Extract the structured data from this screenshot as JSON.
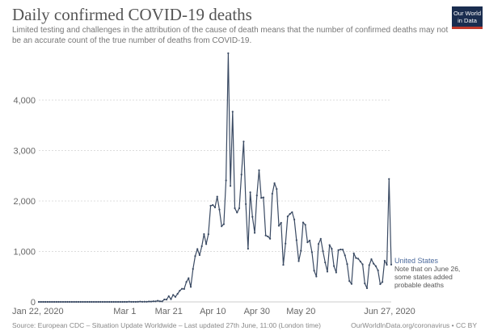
{
  "header": {
    "title": "Daily confirmed COVID-19 deaths",
    "subtitle": "Limited testing and challenges in the attribution of the cause of death means that the number of confirmed deaths may not be an accurate count of the true number of deaths from COVID-19.",
    "logo_line1": "Our World",
    "logo_line2": "in Data"
  },
  "footer": {
    "source": "Source: European CDC – Situation Update Worldwide – Last updated 27th June, 11:00 (London time)",
    "credit": "OurWorldInData.org/coronavirus • CC BY"
  },
  "annotation": {
    "series_name": "United States",
    "note_line1": "Note that on June 26,",
    "note_line2": "some states added",
    "note_line3": "probable deaths"
  },
  "colors": {
    "line": "#3a4a63",
    "grid": "#dddddd",
    "logo_bg": "#1a2d4f",
    "logo_accent": "#c0392b"
  },
  "chart_data": {
    "type": "line",
    "title": "Daily confirmed COVID-19 deaths",
    "xlabel": "",
    "ylabel": "",
    "ylim": [
      0,
      5000
    ],
    "yticks": [
      0,
      1000,
      2000,
      3000,
      4000
    ],
    "ytick_labels": [
      "0",
      "1,000",
      "2,000",
      "3,000",
      "4,000"
    ],
    "x_start": "Jan 22, 2020",
    "x_end": "Jun 27, 2020",
    "xticks": [
      {
        "day": 0,
        "label": "Jan 22, 2020"
      },
      {
        "day": 39,
        "label": "Mar 1"
      },
      {
        "day": 59,
        "label": "Mar 21"
      },
      {
        "day": 79,
        "label": "Apr 10"
      },
      {
        "day": 99,
        "label": "Apr 30"
      },
      {
        "day": 119,
        "label": "May 20"
      },
      {
        "day": 157,
        "label": "Jun 27, 2020"
      }
    ],
    "grid": true,
    "legend": "right-end label",
    "series": [
      {
        "name": "United States",
        "values": [
          0,
          0,
          0,
          0,
          0,
          0,
          0,
          0,
          0,
          0,
          0,
          0,
          0,
          0,
          0,
          0,
          0,
          0,
          0,
          0,
          0,
          0,
          0,
          0,
          0,
          0,
          0,
          0,
          0,
          0,
          0,
          0,
          0,
          0,
          0,
          0,
          0,
          0,
          0,
          1,
          0,
          4,
          1,
          1,
          1,
          2,
          7,
          3,
          4,
          3,
          8,
          7,
          12,
          11,
          22,
          12,
          10,
          49,
          46,
          113,
          54,
          139,
          100,
          160,
          222,
          260,
          257,
          396,
          471,
          298,
          654,
          909,
          1049,
          928,
          1104,
          1344,
          1146,
          1342,
          1906,
          1920,
          1873,
          2087,
          1831,
          1500,
          1541,
          2408,
          4928,
          2299,
          3770,
          1856,
          1772,
          1857,
          2524,
          3179,
          1939,
          1054,
          2172,
          1687,
          1369,
          2110,
          2611,
          2062,
          2070,
          1317,
          1297,
          1252,
          2144,
          2353,
          2239,
          1510,
          1568,
          735,
          1156,
          1694,
          1743,
          1779,
          1632,
          1224,
          808,
          1015,
          1574,
          1528,
          1182,
          1216,
          987,
          620,
          504,
          1149,
          1251,
          1007,
          783,
          601,
          1127,
          1054,
          710,
          584,
          1026,
          1039,
          1036,
          922,
          750,
          415,
          357,
          962,
          870,
          856,
          800,
          744,
          367,
          272,
          728,
          847,
          758,
          709,
          624,
          352,
          395,
          817,
          736,
          2437,
          740
        ]
      }
    ]
  }
}
